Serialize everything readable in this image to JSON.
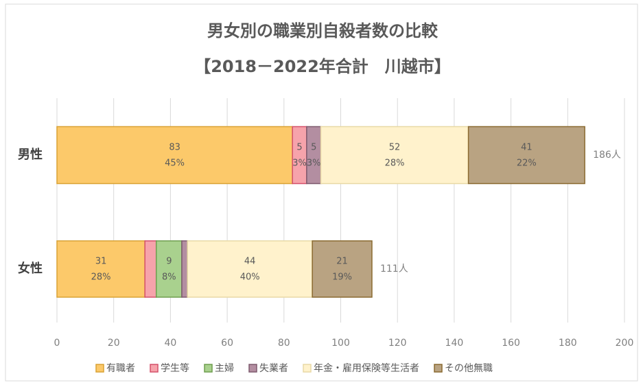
{
  "chart_data": {
    "type": "stacked_barh",
    "title": "男女別の職業別自殺者数の比較",
    "subtitle": "【2018－2022年合計　川越市】",
    "categories": [
      "男性",
      "女性"
    ],
    "series": [
      {
        "name": "有職者",
        "color": "#fcc96a",
        "border": "#d9a235",
        "values": [
          83,
          31
        ],
        "percent_labels": [
          "45%",
          "28%"
        ]
      },
      {
        "name": "学生等",
        "color": "#f6a3ab",
        "border": "#d4506a",
        "values": [
          5,
          4
        ],
        "percent_labels": [
          "3%",
          null
        ]
      },
      {
        "name": "主婦",
        "color": "#a9d18e",
        "border": "#6f9e4f",
        "values": [
          0,
          9
        ],
        "percent_labels": [
          null,
          "8%"
        ]
      },
      {
        "name": "失業者",
        "color": "#b38ea1",
        "border": "#7e5a6e",
        "values": [
          5,
          2
        ],
        "percent_labels": [
          "3%",
          null
        ]
      },
      {
        "name": "年金・雇用保険等生活者",
        "color": "#fff2cc",
        "border": "#e8d9a6",
        "values": [
          52,
          44
        ],
        "percent_labels": [
          "28%",
          "40%"
        ]
      },
      {
        "name": "その他無職",
        "color": "#b9a382",
        "border": "#8a6a30",
        "values": [
          41,
          21
        ],
        "percent_labels": [
          "22%",
          "19%"
        ]
      }
    ],
    "totals": [
      186,
      111
    ],
    "total_labels": [
      "186人",
      "111人"
    ],
    "xlim": [
      0,
      200
    ],
    "xticks": [
      0,
      20,
      40,
      60,
      80,
      100,
      120,
      140,
      160,
      180,
      200
    ],
    "grid": true
  }
}
